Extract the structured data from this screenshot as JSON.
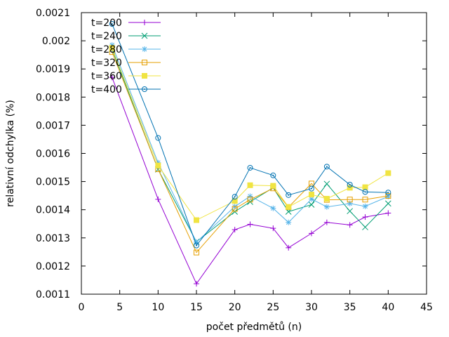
{
  "chart_data": {
    "type": "line",
    "xlabel": "počet předmětů (n)",
    "ylabel": "relativní odchylka (%)",
    "xlim": [
      0,
      45
    ],
    "ylim": [
      0.0011,
      0.0021
    ],
    "xticks": [
      "0",
      "5",
      "10",
      "15",
      "20",
      "25",
      "30",
      "35",
      "40",
      "45"
    ],
    "yticks": [
      "0.0011",
      "0.0012",
      "0.0013",
      "0.0014",
      "0.0015",
      "0.0016",
      "0.0017",
      "0.0018",
      "0.0019",
      "0.002",
      "0.0021"
    ],
    "grid": false,
    "legend_position": "top-left",
    "x": [
      4,
      10,
      15,
      20,
      22,
      25,
      27,
      30,
      32,
      35,
      37,
      40
    ],
    "series": [
      {
        "name": "t=200",
        "color": "#9400d3",
        "marker": "plus",
        "values": [
          0.00187,
          0.001437,
          0.001137,
          0.001329,
          0.001348,
          0.001334,
          0.001265,
          0.001316,
          0.001355,
          0.001346,
          0.001374,
          0.001388
        ]
      },
      {
        "name": "t=240",
        "color": "#009e73",
        "marker": "cross",
        "values": [
          0.00197,
          0.001543,
          0.001286,
          0.001393,
          0.001428,
          0.001478,
          0.001393,
          0.001418,
          0.001492,
          0.001395,
          0.001338,
          0.001422
        ]
      },
      {
        "name": "t=280",
        "color": "#56b4e9",
        "marker": "star",
        "values": [
          0.001985,
          0.001567,
          0.001285,
          0.001411,
          0.001448,
          0.001405,
          0.001355,
          0.001438,
          0.00141,
          0.001422,
          0.001412,
          0.001447
        ]
      },
      {
        "name": "t=320",
        "color": "#e69f00",
        "marker": "square-open",
        "values": [
          0.00196,
          0.001544,
          0.001248,
          0.001403,
          0.001436,
          0.001476,
          0.001409,
          0.001493,
          0.001435,
          0.001436,
          0.001436,
          0.001449
        ]
      },
      {
        "name": "t=360",
        "color": "#f0e442",
        "marker": "square-filled",
        "values": [
          0.001975,
          0.001557,
          0.001363,
          0.001431,
          0.001487,
          0.001485,
          0.00141,
          0.001454,
          0.001439,
          0.001478,
          0.00148,
          0.00153
        ]
      },
      {
        "name": "t=400",
        "color": "#0072b2",
        "marker": "circle-dot",
        "values": [
          0.00206,
          0.001655,
          0.001273,
          0.001446,
          0.001549,
          0.001522,
          0.001452,
          0.001475,
          0.001553,
          0.001489,
          0.001463,
          0.001461
        ]
      }
    ]
  }
}
